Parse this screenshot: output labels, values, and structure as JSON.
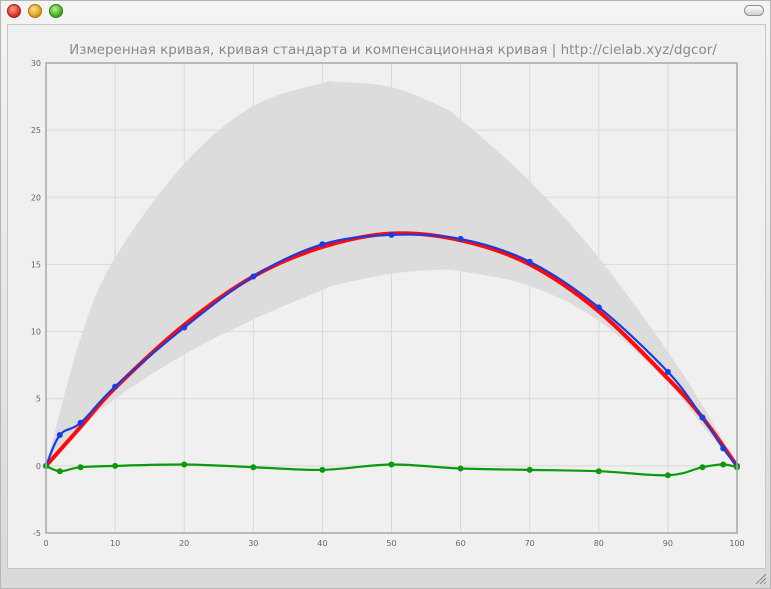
{
  "window": {
    "title": ""
  },
  "chart_data": {
    "type": "line",
    "title": "Измеренная кривая, кривая стандарта и компенсационная кривая | http://cielab.xyz/dgcor/",
    "xlim": [
      0,
      100
    ],
    "ylim": [
      -5,
      30
    ],
    "x_ticks": [
      0,
      10,
      20,
      30,
      40,
      50,
      60,
      70,
      80,
      90,
      100
    ],
    "y_ticks": [
      -5,
      0,
      5,
      10,
      15,
      20,
      25,
      30
    ],
    "x_tick_labels": [
      "0",
      "10",
      "20",
      "30",
      "40",
      "50",
      "60",
      "70",
      "80",
      "90",
      "100"
    ],
    "y_tick_labels": [
      "-5",
      "0",
      "5",
      "10",
      "15",
      "20",
      "25",
      "30"
    ],
    "grid": true,
    "colors": {
      "measured": "#1a3de0",
      "standard": "#ff0a0a",
      "compensation": "#0c9a0c",
      "band": "#dcdcdc"
    },
    "band": {
      "x": [
        0,
        5,
        10,
        20,
        30,
        40,
        42,
        50,
        57,
        60,
        70,
        80,
        90,
        95,
        100
      ],
      "upper": [
        0,
        9.5,
        15.5,
        22.5,
        26.8,
        28.5,
        28.6,
        28.2,
        26.8,
        25.8,
        21.2,
        15.5,
        8.5,
        4.5,
        0
      ],
      "lower": [
        0,
        2.8,
        5.0,
        8.3,
        10.9,
        13.1,
        13.5,
        14.3,
        14.6,
        14.5,
        13.4,
        10.8,
        6.2,
        3.0,
        0
      ]
    },
    "series": [
      {
        "key": "standard",
        "x": [
          0,
          5,
          10,
          20,
          30,
          40,
          50,
          60,
          70,
          80,
          90,
          95,
          100
        ],
        "y": [
          0,
          2.9,
          5.8,
          10.5,
          14.1,
          16.3,
          17.3,
          16.8,
          15.0,
          11.5,
          6.5,
          3.6,
          0
        ],
        "markers": false
      },
      {
        "key": "measured",
        "x": [
          0,
          2,
          5,
          10,
          20,
          30,
          40,
          50,
          60,
          70,
          80,
          90,
          95,
          98,
          100
        ],
        "y": [
          0,
          2.3,
          3.2,
          5.9,
          10.3,
          14.1,
          16.5,
          17.2,
          16.9,
          15.2,
          11.8,
          7.0,
          3.6,
          1.3,
          0
        ],
        "markers": true
      },
      {
        "key": "compensation",
        "x": [
          0,
          2,
          5,
          10,
          20,
          30,
          40,
          50,
          60,
          70,
          80,
          90,
          95,
          98,
          100
        ],
        "y": [
          0,
          -0.4,
          -0.1,
          0,
          0.1,
          -0.1,
          -0.3,
          0.1,
          -0.2,
          -0.3,
          -0.4,
          -0.7,
          -0.1,
          0.1,
          -0.1
        ],
        "markers": true
      }
    ]
  }
}
